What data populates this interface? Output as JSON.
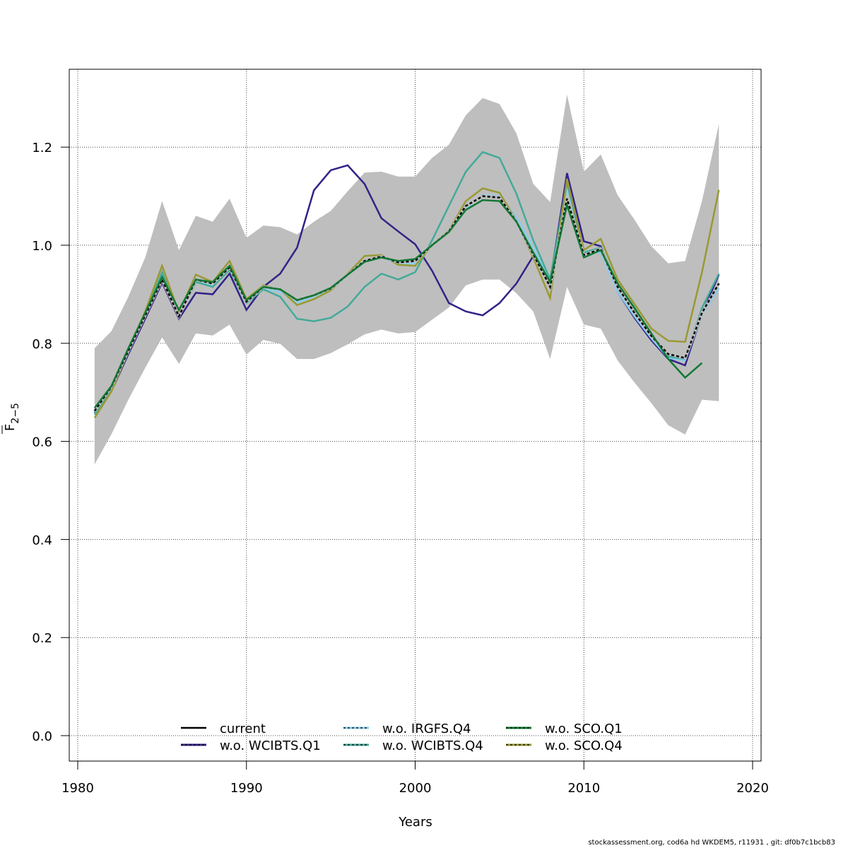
{
  "chart_data": {
    "type": "line",
    "title": "",
    "xlabel": "Years",
    "ylabel_main": "F",
    "ylabel_sub": "2−5",
    "xlim": [
      1979.5,
      2020.5
    ],
    "ylim": [
      -0.05,
      1.36
    ],
    "xticks": [
      1980,
      1990,
      2000,
      2010,
      2020
    ],
    "xtick_labels": [
      "1980",
      "1990",
      "2000",
      "2010",
      "2020"
    ],
    "yticks": [
      0.0,
      0.2,
      0.4,
      0.6,
      0.8,
      1.0,
      1.2
    ],
    "ytick_labels": [
      "0.0",
      "0.2",
      "0.4",
      "0.6",
      "0.8",
      "1.0",
      "1.2"
    ],
    "grid": true,
    "legend_position": "bottom-center",
    "confidence_band": {
      "color": "#bebebe",
      "x": [
        1981,
        1982,
        1983,
        1984,
        1985,
        1986,
        1987,
        1988,
        1989,
        1990,
        1991,
        1992,
        1993,
        1994,
        1995,
        1996,
        1997,
        1998,
        1999,
        2000,
        2001,
        2002,
        2003,
        2004,
        2005,
        2006,
        2007,
        2008,
        2009,
        2010,
        2011,
        2012,
        2013,
        2014,
        2015,
        2016,
        2017,
        2018
      ],
      "upper": [
        0.79,
        0.825,
        0.895,
        0.975,
        1.09,
        0.99,
        1.06,
        1.048,
        1.095,
        1.015,
        1.04,
        1.037,
        1.022,
        1.048,
        1.07,
        1.11,
        1.148,
        1.15,
        1.14,
        1.14,
        1.178,
        1.205,
        1.265,
        1.3,
        1.288,
        1.228,
        1.125,
        1.088,
        1.307,
        1.15,
        1.185,
        1.102,
        1.052,
        0.998,
        0.963,
        0.968,
        1.09,
        1.247
      ],
      "lower": [
        0.553,
        0.615,
        0.685,
        0.75,
        0.812,
        0.758,
        0.82,
        0.816,
        0.838,
        0.777,
        0.807,
        0.799,
        0.768,
        0.768,
        0.78,
        0.798,
        0.818,
        0.828,
        0.82,
        0.823,
        0.848,
        0.873,
        0.918,
        0.93,
        0.93,
        0.902,
        0.865,
        0.768,
        0.915,
        0.838,
        0.83,
        0.765,
        0.72,
        0.678,
        0.633,
        0.614,
        0.685,
        0.682
      ]
    },
    "series": [
      {
        "name": "current",
        "color": "#000000",
        "style": "current",
        "x": [
          1981,
          1982,
          1983,
          1984,
          1985,
          1986,
          1987,
          1988,
          1989,
          1990,
          1991,
          1992,
          1993,
          1994,
          1995,
          1996,
          1997,
          1998,
          1999,
          2000,
          2001,
          2002,
          2003,
          2004,
          2005,
          2006,
          2007,
          2008,
          2009,
          2010,
          2011,
          2012,
          2013,
          2014,
          2015,
          2016,
          2017,
          2018
        ],
        "values": [
          0.662,
          0.712,
          0.785,
          0.857,
          0.93,
          0.855,
          0.93,
          0.922,
          0.955,
          0.885,
          0.915,
          0.91,
          0.888,
          0.898,
          0.912,
          0.94,
          0.968,
          0.977,
          0.965,
          0.968,
          1.0,
          1.028,
          1.08,
          1.1,
          1.097,
          1.048,
          0.982,
          0.915,
          1.095,
          0.98,
          0.992,
          0.915,
          0.862,
          0.815,
          0.778,
          0.77,
          0.862,
          0.922
        ]
      },
      {
        "name": "w.o. WCIBTS.Q1",
        "color": "#332288",
        "style": "solid",
        "x": [
          1981,
          1982,
          1983,
          1984,
          1985,
          1986,
          1987,
          1988,
          1989,
          1990,
          1991,
          1992,
          1993,
          1994,
          1995,
          1996,
          1997,
          1998,
          1999,
          2000,
          2001,
          2002,
          2003,
          2004,
          2005,
          2006,
          2007,
          2008,
          2009,
          2010,
          2011,
          2012,
          2013,
          2014,
          2015,
          2016,
          2017,
          2018
        ],
        "values": [
          0.658,
          0.703,
          0.778,
          0.85,
          0.924,
          0.85,
          0.903,
          0.9,
          0.942,
          0.868,
          0.915,
          0.942,
          0.995,
          1.112,
          1.153,
          1.163,
          1.125,
          1.055,
          1.028,
          1.002,
          0.948,
          0.882,
          0.865,
          0.857,
          0.882,
          0.922,
          0.978,
          0.925,
          1.147,
          1.008,
          0.998,
          0.905,
          0.852,
          0.806,
          0.768,
          0.755,
          0.86,
          0.94
        ]
      },
      {
        "name": "w.o. IRGFS.Q4",
        "color": "#88ccee",
        "style": "solid",
        "x": [
          1981,
          1982,
          1983,
          1984,
          1985,
          1986,
          1987,
          1988,
          1989,
          1990,
          1991,
          1992,
          1993,
          1994,
          1995,
          1996,
          1997,
          1998,
          1999,
          2000,
          2001,
          2002,
          2003,
          2004,
          2005,
          2006,
          2007,
          2008,
          2009,
          2010,
          2011,
          2012,
          2013,
          2014,
          2015,
          2016,
          2017,
          2018
        ],
        "values": [
          0.66,
          0.71,
          0.785,
          0.857,
          0.94,
          0.855,
          0.925,
          0.918,
          0.952,
          0.882,
          0.912,
          0.905,
          0.883,
          0.895,
          0.91,
          0.938,
          0.966,
          0.975,
          0.962,
          0.963,
          1.0,
          1.03,
          1.075,
          1.102,
          1.1,
          1.058,
          0.995,
          0.928,
          1.12,
          0.988,
          0.985,
          0.905,
          0.855,
          0.81,
          0.77,
          0.765,
          0.858,
          0.912
        ]
      },
      {
        "name": "w.o. WCIBTS.Q4",
        "color": "#44aa99",
        "style": "solid",
        "x": [
          1981,
          1982,
          1983,
          1984,
          1985,
          1986,
          1987,
          1988,
          1989,
          1990,
          1991,
          1992,
          1993,
          1994,
          1995,
          1996,
          1997,
          1998,
          1999,
          2000,
          2001,
          2002,
          2003,
          2004,
          2005,
          2006,
          2007,
          2008,
          2009,
          2010,
          2011,
          2012,
          2013,
          2014,
          2015,
          2016,
          2017,
          2018
        ],
        "values": [
          0.655,
          0.705,
          0.782,
          0.858,
          0.945,
          0.855,
          0.925,
          0.915,
          0.95,
          0.882,
          0.91,
          0.895,
          0.85,
          0.845,
          0.852,
          0.875,
          0.915,
          0.942,
          0.93,
          0.945,
          1.01,
          1.08,
          1.15,
          1.19,
          1.178,
          1.105,
          1.01,
          0.93,
          1.128,
          0.985,
          0.995,
          0.92,
          0.868,
          0.818,
          0.773,
          0.768,
          0.872,
          0.942
        ]
      },
      {
        "name": "w.o. SCO.Q1",
        "color": "#117733",
        "style": "solid",
        "x": [
          1981,
          1982,
          1983,
          1984,
          1985,
          1986,
          1987,
          1988,
          1989,
          1990,
          1991,
          1992,
          1993,
          1994,
          1995,
          1996,
          1997,
          1998,
          1999,
          2000,
          2001,
          2002,
          2003,
          2004,
          2005,
          2006,
          2007,
          2008,
          2009,
          2010,
          2011,
          2012,
          2013,
          2014,
          2015,
          2016,
          2017
        ],
        "values": [
          0.668,
          0.713,
          0.79,
          0.862,
          0.935,
          0.868,
          0.93,
          0.925,
          0.958,
          0.888,
          0.915,
          0.91,
          0.888,
          0.898,
          0.913,
          0.94,
          0.966,
          0.975,
          0.968,
          0.972,
          1.0,
          1.027,
          1.072,
          1.092,
          1.09,
          1.048,
          0.985,
          0.925,
          1.082,
          0.975,
          0.99,
          0.922,
          0.872,
          0.82,
          0.768,
          0.73,
          0.76
        ]
      },
      {
        "name": "w.o. SCO.Q4",
        "color": "#999933",
        "style": "solid",
        "x": [
          1981,
          1982,
          1983,
          1984,
          1985,
          1986,
          1987,
          1988,
          1989,
          1990,
          1991,
          1992,
          1993,
          1994,
          1995,
          1996,
          1997,
          1998,
          1999,
          2000,
          2001,
          2002,
          2003,
          2004,
          2005,
          2006,
          2007,
          2008,
          2009,
          2010,
          2011,
          2012,
          2013,
          2014,
          2015,
          2016,
          2017,
          2018
        ],
        "values": [
          0.648,
          0.702,
          0.785,
          0.865,
          0.958,
          0.862,
          0.94,
          0.925,
          0.968,
          0.89,
          0.918,
          0.91,
          0.878,
          0.89,
          0.908,
          0.942,
          0.978,
          0.98,
          0.96,
          0.958,
          1.0,
          1.03,
          1.09,
          1.116,
          1.107,
          1.05,
          0.975,
          0.892,
          1.135,
          0.99,
          1.013,
          0.93,
          0.88,
          0.83,
          0.805,
          0.803,
          0.945,
          1.113
        ]
      }
    ]
  },
  "footer": "stockassessment.org, cod6a  hd  WKDEM5, r11931 , git: df0b7c1bcb83"
}
